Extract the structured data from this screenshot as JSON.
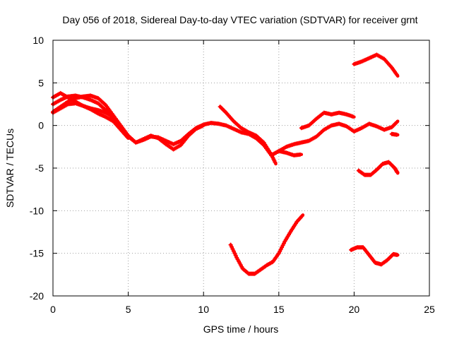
{
  "chart_data": {
    "type": "scatter",
    "title": "Day 056 of 2018, Sidereal Day-to-day VTEC variation (SDTVAR) for receiver grnt",
    "xlabel": "GPS time / hours",
    "ylabel": "SDTVAR / TECUs",
    "xlim": [
      0,
      25
    ],
    "ylim": [
      -20,
      10
    ],
    "xticks": [
      "0",
      "5",
      "10",
      "15",
      "20",
      "25"
    ],
    "yticks": [
      "10",
      "5",
      "0",
      "-5",
      "-10",
      "-15",
      "-20"
    ],
    "grid": true,
    "marker_color": "#ff0000",
    "series": [
      {
        "name": "trace-a",
        "x": [
          0,
          0.5,
          1,
          1.5,
          2,
          2.5,
          3,
          3.5,
          4,
          4.5,
          5,
          5.5,
          6,
          6.5,
          7,
          7.5,
          8,
          8.5,
          9,
          9.5,
          10,
          10.5,
          11,
          11.5,
          12,
          12.5,
          13,
          13.5,
          14,
          14.5,
          15,
          15.5,
          16,
          16.5,
          17,
          17.5,
          18,
          18.5,
          19,
          19.5,
          20,
          20.5,
          21,
          21.5,
          22,
          22.5,
          22.9
        ],
        "y": [
          2.5,
          3.0,
          3.4,
          3.5,
          3.3,
          3.0,
          2.6,
          1.8,
          0.8,
          -0.3,
          -1.3,
          -2.0,
          -1.7,
          -1.3,
          -1.4,
          -1.8,
          -2.2,
          -1.8,
          -1.0,
          -0.3,
          0.1,
          0.3,
          0.2,
          0,
          -0.4,
          -0.8,
          -1.0,
          -1.5,
          -2.3,
          -3.5,
          -3.0,
          -2.5,
          -2.2,
          -2.0,
          -1.8,
          -1.3,
          -0.5,
          0,
          0.2,
          -0.1,
          -0.7,
          -0.3,
          0.2,
          -0.1,
          -0.5,
          -0.2,
          0.5
        ]
      },
      {
        "name": "trace-b",
        "x": [
          0,
          0.5,
          1,
          1.5,
          2,
          2.5,
          3,
          3.5,
          4,
          4.5,
          5,
          5.5,
          6,
          6.5,
          7,
          7.5,
          8,
          8.5,
          9,
          9.5,
          10
        ],
        "y": [
          1.6,
          2.2,
          2.8,
          3.2,
          3.4,
          3.5,
          3.2,
          2.4,
          1.2,
          0,
          -1.2,
          -2.0,
          -1.6,
          -1.2,
          -1.5,
          -2.2,
          -2.8,
          -2.3,
          -1.2,
          -0.4,
          0
        ]
      },
      {
        "name": "trace-c",
        "x": [
          0,
          0.5,
          1,
          1.5,
          2,
          2.5,
          3,
          3.5,
          4,
          4.5,
          5
        ],
        "y": [
          3.3,
          3.8,
          3.3,
          2.8,
          2.3,
          1.9,
          1.4,
          1.0,
          0.5,
          -0.5,
          -1.5
        ]
      },
      {
        "name": "trace-d",
        "x": [
          0,
          0.5,
          1,
          1.5,
          2,
          2.5,
          3,
          3.5,
          4
        ],
        "y": [
          1.5,
          2.0,
          2.5,
          2.6,
          2.3,
          2.0,
          1.8,
          1.5,
          1.0
        ]
      },
      {
        "name": "trace-e",
        "x": [
          11.1,
          11.5,
          12,
          12.5,
          13,
          13.5,
          14,
          14.5,
          14.8
        ],
        "y": [
          2.2,
          1.5,
          0.5,
          -0.3,
          -0.8,
          -1.2,
          -2.0,
          -3.4,
          -4.5
        ]
      },
      {
        "name": "trace-f",
        "x": [
          14.5,
          15,
          15.5,
          16,
          16.5
        ],
        "y": [
          -3.5,
          -3.0,
          -3.2,
          -3.5,
          -3.4
        ]
      },
      {
        "name": "trace-g",
        "x": [
          16.5,
          17,
          17.5,
          18,
          18.5,
          19,
          19.5,
          20
        ],
        "y": [
          -0.3,
          0,
          0.8,
          1.5,
          1.3,
          1.5,
          1.3,
          1.0
        ]
      },
      {
        "name": "trace-h",
        "x": [
          20,
          20.5,
          21,
          21.5,
          22,
          22.5,
          22.9
        ],
        "y": [
          7.2,
          7.5,
          7.9,
          8.3,
          7.8,
          6.8,
          5.8
        ]
      },
      {
        "name": "trace-i",
        "x": [
          22.5,
          22.9
        ],
        "y": [
          -1.0,
          -1.1
        ]
      },
      {
        "name": "trace-j",
        "x": [
          20.3,
          20.7,
          21.1,
          21.5,
          21.9,
          22.3,
          22.7,
          22.9
        ],
        "y": [
          -5.3,
          -5.8,
          -5.8,
          -5.2,
          -4.5,
          -4.3,
          -5.0,
          -5.6
        ]
      },
      {
        "name": "trace-k",
        "x": [
          11.8,
          12.2,
          12.6,
          13,
          13.4,
          13.8,
          14.2,
          14.6,
          15,
          15.4,
          15.8,
          16.2,
          16.6
        ],
        "y": [
          -14.0,
          -15.5,
          -16.8,
          -17.4,
          -17.4,
          -16.9,
          -16.4,
          -16.0,
          -15.0,
          -13.6,
          -12.4,
          -11.3,
          -10.5
        ]
      },
      {
        "name": "trace-l",
        "x": [
          19.8,
          20.2,
          20.6,
          21,
          21.4,
          21.8,
          22.2,
          22.6,
          22.9
        ],
        "y": [
          -14.6,
          -14.3,
          -14.3,
          -15.2,
          -16.1,
          -16.3,
          -15.8,
          -15.1,
          -15.2
        ]
      }
    ]
  }
}
